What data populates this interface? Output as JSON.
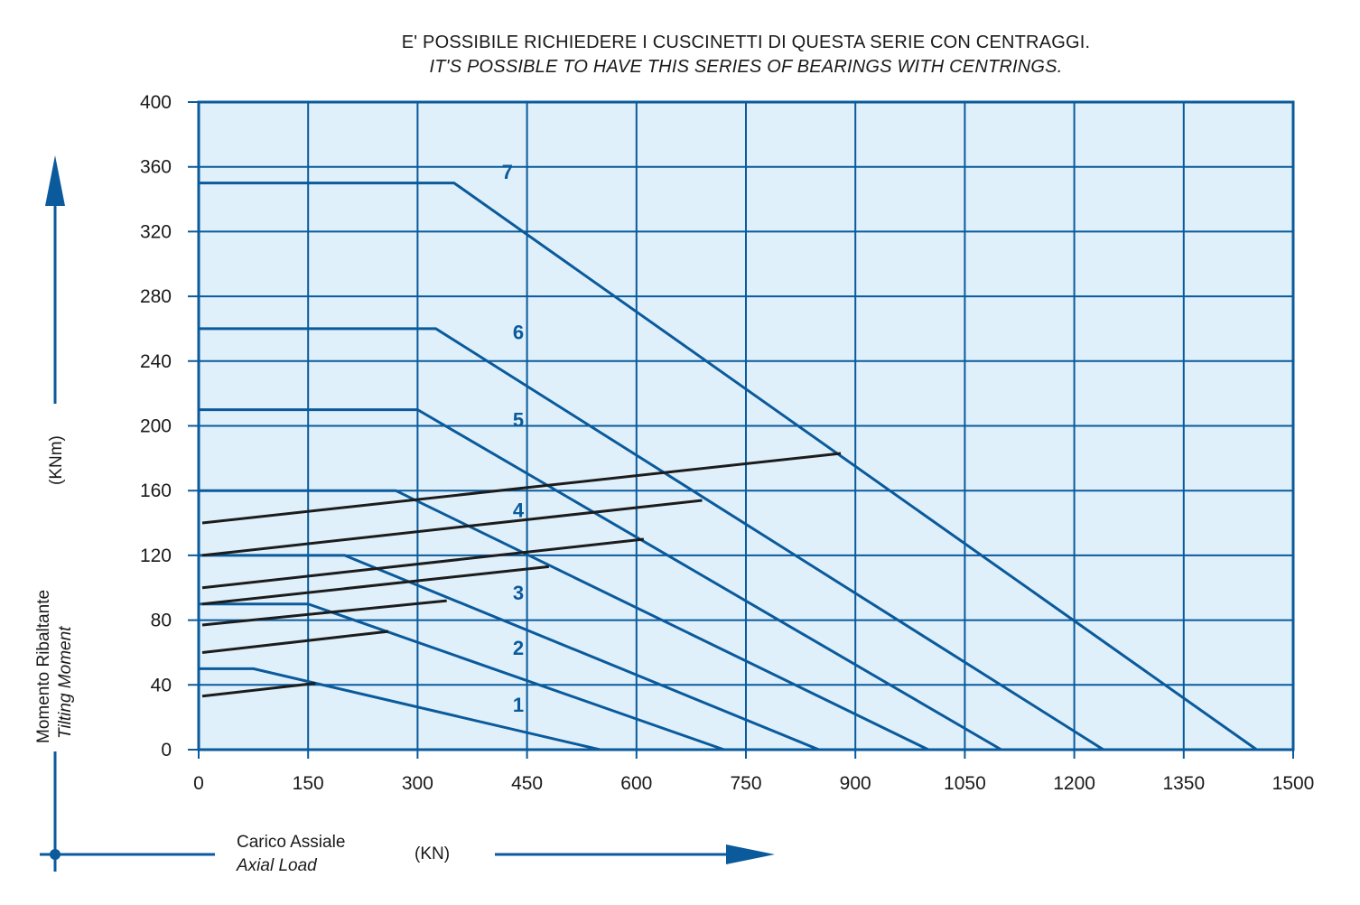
{
  "header": {
    "title_it": "E' POSSIBILE RICHIEDERE I CUSCINETTI DI QUESTA SERIE CON CENTRAGGI.",
    "title_en": "IT'S POSSIBLE TO HAVE THIS SERIES OF BEARINGS WITH CENTRINGS."
  },
  "axes": {
    "y_label_it": "Momento Ribaltante",
    "y_label_en": "Tilting Moment",
    "y_unit": "(KNm)",
    "x_label_it": "Carico Assiale",
    "x_label_en": "Axial Load",
    "x_unit": "(KN)"
  },
  "colors": {
    "plot_background": "#dff0fa",
    "grid": "#0a5a9c",
    "blue_curves": "#0a5a9c",
    "black_curves": "#1c1c1c"
  },
  "chart_data": {
    "type": "line",
    "xlim": [
      0,
      1500
    ],
    "ylim": [
      0,
      400
    ],
    "x_ticks": [
      "0",
      "150",
      "300",
      "450",
      "600",
      "750",
      "900",
      "1050",
      "1200",
      "1350",
      "1500"
    ],
    "y_ticks": [
      "0",
      "40",
      "80",
      "120",
      "160",
      "200",
      "240",
      "280",
      "320",
      "360",
      "400"
    ],
    "grid": true,
    "series": [
      {
        "name": "1",
        "color": "blue",
        "points": [
          [
            0,
            50
          ],
          [
            75,
            50
          ],
          [
            550,
            0
          ]
        ]
      },
      {
        "name": "2",
        "color": "blue",
        "points": [
          [
            0,
            90
          ],
          [
            150,
            90
          ],
          [
            720,
            0
          ]
        ]
      },
      {
        "name": "3",
        "color": "blue",
        "points": [
          [
            0,
            120
          ],
          [
            200,
            120
          ],
          [
            850,
            0
          ]
        ]
      },
      {
        "name": "4",
        "color": "blue",
        "points": [
          [
            0,
            160
          ],
          [
            270,
            160
          ],
          [
            1000,
            0
          ]
        ]
      },
      {
        "name": "5",
        "color": "blue",
        "points": [
          [
            0,
            210
          ],
          [
            300,
            210
          ],
          [
            1100,
            0
          ]
        ]
      },
      {
        "name": "6",
        "color": "blue",
        "points": [
          [
            0,
            260
          ],
          [
            325,
            260
          ],
          [
            1240,
            0
          ]
        ]
      },
      {
        "name": "7",
        "color": "blue",
        "points": [
          [
            0,
            350
          ],
          [
            350,
            350
          ],
          [
            1450,
            0
          ]
        ]
      },
      {
        "color": "black",
        "points": [
          [
            5,
            33
          ],
          [
            160,
            41
          ]
        ]
      },
      {
        "color": "black",
        "points": [
          [
            5,
            60
          ],
          [
            260,
            73
          ]
        ]
      },
      {
        "color": "black",
        "points": [
          [
            5,
            77
          ],
          [
            340,
            92
          ]
        ]
      },
      {
        "color": "black",
        "points": [
          [
            5,
            90
          ],
          [
            480,
            113
          ]
        ]
      },
      {
        "color": "black",
        "points": [
          [
            5,
            100
          ],
          [
            610,
            130
          ]
        ]
      },
      {
        "color": "black",
        "points": [
          [
            5,
            120
          ],
          [
            690,
            154
          ]
        ]
      },
      {
        "color": "black",
        "points": [
          [
            5,
            140
          ],
          [
            880,
            183
          ]
        ]
      }
    ],
    "labels": [
      {
        "text": "1",
        "x": 370,
        "y": 28
      },
      {
        "text": "2",
        "x": 370,
        "y": 63
      },
      {
        "text": "3",
        "x": 370,
        "y": 97
      },
      {
        "text": "4",
        "x": 370,
        "y": 148
      },
      {
        "text": "5",
        "x": 370,
        "y": 204
      },
      {
        "text": "6",
        "x": 370,
        "y": 258
      },
      {
        "text": "7",
        "x": 355,
        "y": 357
      }
    ]
  }
}
